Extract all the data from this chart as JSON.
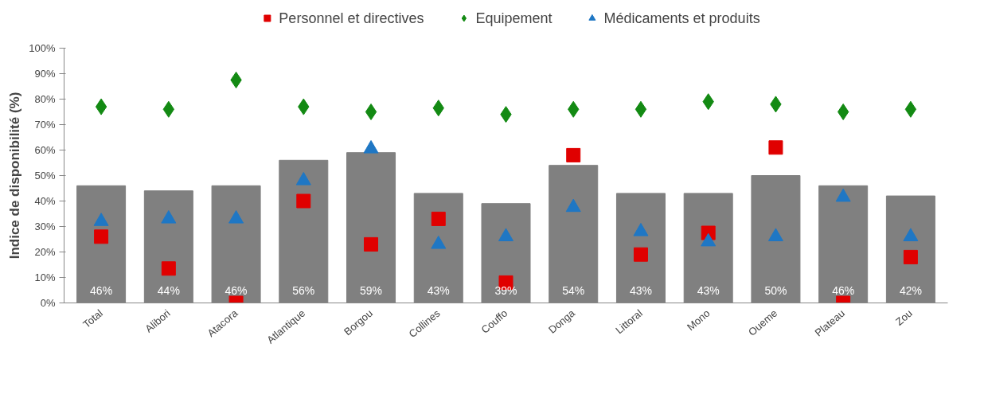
{
  "chart_data": {
    "type": "bar",
    "ylabel": "Indice de disponibilité (%)",
    "categories": [
      "Total",
      "Alibori",
      "Atacora",
      "Atlantique",
      "Borgou",
      "Collines",
      "Couffo",
      "Donga",
      "Littoral",
      "Mono",
      "Oueme",
      "Plateau",
      "Zou"
    ],
    "series": [
      {
        "color": "#808080",
        "values": [
          46,
          44,
          46,
          56,
          59,
          43,
          39,
          54,
          43,
          43,
          50,
          46,
          42
        ],
        "value_labels": [
          "46%",
          "44%",
          "46%",
          "56%",
          "59%",
          "43%",
          "39%",
          "54%",
          "43%",
          "43%",
          "50%",
          "46%",
          "42%"
        ]
      },
      {
        "type": "scatter",
        "name": "Personnel et directives",
        "color": "#e00000",
        "marker": "square",
        "values": [
          26,
          13.5,
          0,
          40,
          23,
          33,
          8,
          58,
          19,
          27.5,
          61,
          0,
          18
        ]
      },
      {
        "type": "scatter",
        "name": "Equipement",
        "color": "#138a13",
        "marker": "diamond",
        "values": [
          77,
          76,
          87.5,
          77,
          75,
          76.5,
          74,
          76,
          76,
          79,
          78,
          75,
          76
        ]
      },
      {
        "type": "scatter",
        "name": "Médicaments et produits",
        "color": "#1f77c4",
        "marker": "triangle",
        "values": [
          32,
          33,
          33,
          48,
          60.5,
          23,
          26,
          37.5,
          28,
          24,
          26,
          41.5,
          26
        ]
      }
    ],
    "ylim": [
      0,
      100
    ],
    "yticks": [
      {
        "value": 0,
        "label": "0%"
      },
      {
        "value": 10,
        "label": "10%"
      },
      {
        "value": 20,
        "label": "20%"
      },
      {
        "value": 30,
        "label": "30%"
      },
      {
        "value": 40,
        "label": "40%"
      },
      {
        "value": 50,
        "label": "50%"
      },
      {
        "value": 60,
        "label": "60%"
      },
      {
        "value": 70,
        "label": "70%"
      },
      {
        "value": 80,
        "label": "80%"
      },
      {
        "value": 90,
        "label": "90%"
      },
      {
        "value": 100,
        "label": "100%"
      }
    ],
    "grid": false,
    "legend": "top"
  }
}
